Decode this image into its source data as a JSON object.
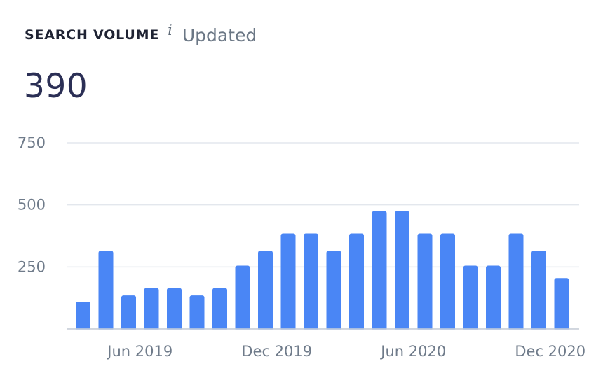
{
  "header": {
    "label": "SEARCH VOLUME",
    "info_icon": "info-icon",
    "updated": "Updated"
  },
  "value": "390",
  "colors": {
    "bar": "#4a86f5",
    "grid": "#e3e7ed",
    "tick": "#6f7b8a"
  },
  "chart_data": {
    "type": "bar",
    "values": [
      110,
      315,
      135,
      165,
      165,
      135,
      165,
      255,
      315,
      385,
      385,
      315,
      385,
      475,
      475,
      385,
      385,
      255,
      255,
      385,
      315,
      205
    ],
    "xticks": [
      {
        "index": 2.5,
        "label": "Jun 2019"
      },
      {
        "index": 8.5,
        "label": "Dec 2019"
      },
      {
        "index": 14.5,
        "label": "Jun 2020"
      },
      {
        "index": 20.5,
        "label": "Dec 2020"
      }
    ],
    "yticks": [
      250,
      500,
      750
    ],
    "ylim": [
      0,
      750
    ],
    "grid": true,
    "title": "",
    "xlabel": "",
    "ylabel": ""
  }
}
